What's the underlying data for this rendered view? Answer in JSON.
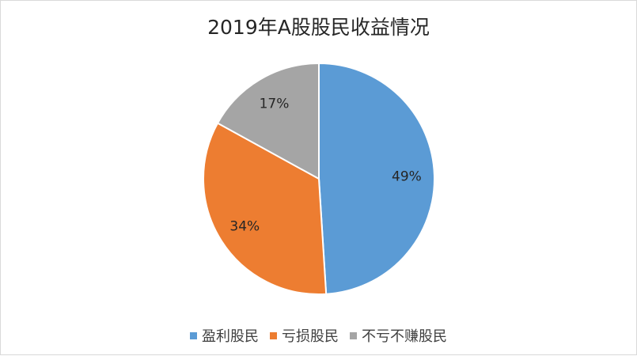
{
  "chart_data": {
    "type": "pie",
    "title": "2019年A股股民收益情况",
    "categories": [
      "盈利股民",
      "亏损股民",
      "不亏不赚股民"
    ],
    "values": [
      49,
      34,
      17
    ],
    "labels": [
      "49%",
      "34%",
      "17%"
    ],
    "colors": [
      "#5B9BD5",
      "#ED7D31",
      "#A5A5A5"
    ],
    "legend": "bottom"
  }
}
